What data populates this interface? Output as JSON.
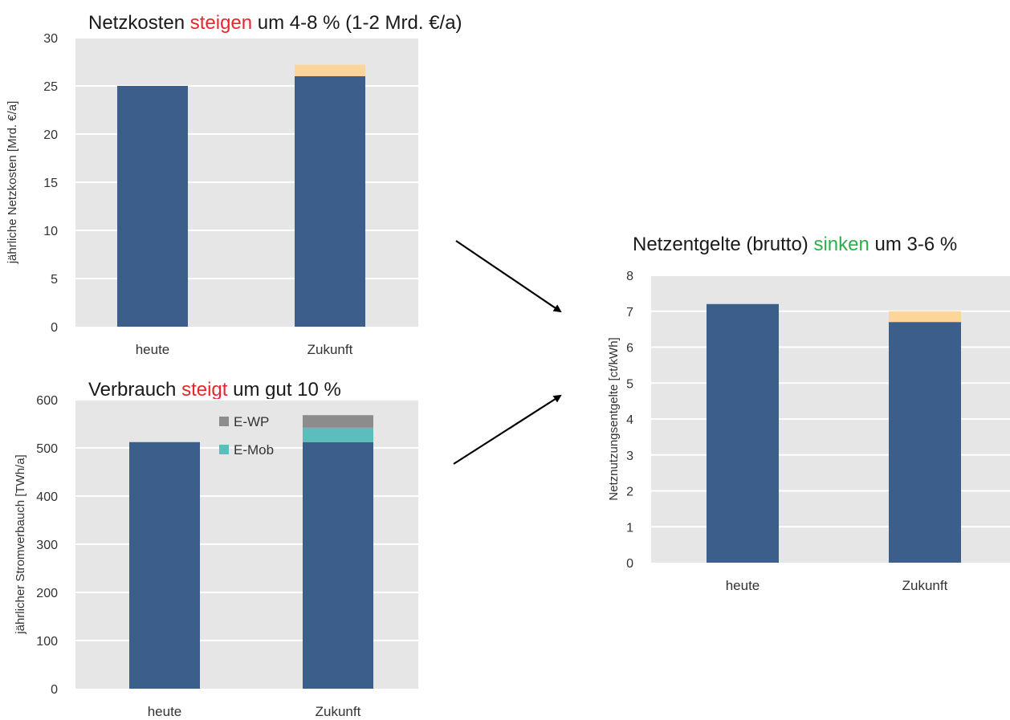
{
  "colors": {
    "bar_main": "#3C5E8B",
    "bar_increase": "#FDD59A",
    "e_wp": "#8C8C8C",
    "e_mob": "#5BBDBC",
    "plot_bg": "#E6E6E6",
    "grid": "#FFFFFF",
    "highlight_up": "#E8262B",
    "highlight_down": "#2CB14A",
    "arrow": "#000000"
  },
  "chart_data": [
    {
      "id": "netzkosten",
      "type": "bar",
      "stacked": true,
      "title_parts": [
        {
          "text": "Netzkosten ",
          "color": "default"
        },
        {
          "text": "steigen",
          "color": "highlight_up"
        },
        {
          "text": " um 4-8 % (1-2 Mrd. €/a)",
          "color": "default"
        }
      ],
      "ylabel": "jährliche Netzkosten [Mrd. €/a]",
      "ylim": [
        0,
        30
      ],
      "yticks": [
        0,
        5,
        10,
        15,
        20,
        25,
        30
      ],
      "grid": true,
      "categories": [
        "heute",
        "Zukunft"
      ],
      "series": [
        {
          "color": "bar_main",
          "values": [
            25,
            26
          ]
        },
        {
          "color": "bar_increase",
          "values": [
            0,
            1.2
          ]
        }
      ]
    },
    {
      "id": "verbrauch",
      "type": "bar",
      "stacked": true,
      "title_parts": [
        {
          "text": "Verbrauch ",
          "color": "default"
        },
        {
          "text": "steigt",
          "color": "highlight_up"
        },
        {
          "text": " um gut 10 %",
          "color": "default"
        }
      ],
      "ylabel": "jährlicher Stromverbauch [TWh/a]",
      "ylim": [
        0,
        600
      ],
      "yticks": [
        0,
        100,
        200,
        300,
        400,
        500,
        600
      ],
      "grid": true,
      "categories": [
        "heute",
        "Zukunft"
      ],
      "series": [
        {
          "color": "bar_main",
          "values": [
            512,
            512
          ]
        },
        {
          "name": "E-Mob",
          "color": "e_mob",
          "values": [
            0,
            30
          ]
        },
        {
          "name": "E-WP",
          "color": "e_wp",
          "values": [
            0,
            26
          ]
        }
      ],
      "legend": {
        "position": "top-center",
        "entries": [
          "E-WP",
          "E-Mob"
        ]
      }
    },
    {
      "id": "netzentgelte",
      "type": "bar",
      "stacked": true,
      "title_parts": [
        {
          "text": "Netzentgelte (brutto) ",
          "color": "default"
        },
        {
          "text": "sinken",
          "color": "highlight_down"
        },
        {
          "text": " um 3-6 %",
          "color": "default"
        }
      ],
      "ylabel": "Netznutzungsentgelte [ct/kWh]",
      "ylim": [
        0,
        8
      ],
      "yticks": [
        0,
        1,
        2,
        3,
        4,
        5,
        6,
        7,
        8
      ],
      "grid": true,
      "categories": [
        "heute",
        "Zukunft"
      ],
      "series": [
        {
          "color": "bar_main",
          "values": [
            7.2,
            6.7
          ]
        },
        {
          "color": "bar_increase",
          "values": [
            0,
            0.3
          ]
        }
      ]
    }
  ]
}
